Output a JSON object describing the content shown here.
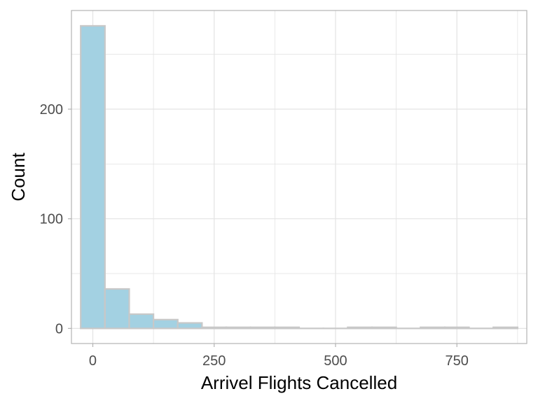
{
  "chart_data": {
    "type": "bar",
    "title": "",
    "xlabel": "Arrivel Flights Cancelled",
    "ylabel": "Count",
    "bin_width": 50,
    "bins": [
      {
        "x0": -25,
        "x1": 25,
        "count": 276
      },
      {
        "x0": 25,
        "x1": 75,
        "count": 36
      },
      {
        "x0": 75,
        "x1": 125,
        "count": 13
      },
      {
        "x0": 125,
        "x1": 175,
        "count": 8
      },
      {
        "x0": 175,
        "x1": 225,
        "count": 5
      },
      {
        "x0": 225,
        "x1": 275,
        "count": 1
      },
      {
        "x0": 275,
        "x1": 325,
        "count": 1
      },
      {
        "x0": 325,
        "x1": 375,
        "count": 1
      },
      {
        "x0": 375,
        "x1": 425,
        "count": 1
      },
      {
        "x0": 425,
        "x1": 475,
        "count": 0
      },
      {
        "x0": 475,
        "x1": 525,
        "count": 0
      },
      {
        "x0": 525,
        "x1": 575,
        "count": 1
      },
      {
        "x0": 575,
        "x1": 625,
        "count": 1
      },
      {
        "x0": 625,
        "x1": 675,
        "count": 0
      },
      {
        "x0": 675,
        "x1": 725,
        "count": 1
      },
      {
        "x0": 725,
        "x1": 775,
        "count": 1
      },
      {
        "x0": 775,
        "x1": 825,
        "count": 0
      },
      {
        "x0": 825,
        "x1": 875,
        "count": 1
      }
    ],
    "xlim": [
      -44,
      894
    ],
    "ylim": [
      -13.8,
      290
    ],
    "x_ticks": [
      0,
      250,
      500,
      750
    ],
    "y_ticks": [
      0,
      100,
      200
    ],
    "grid": true,
    "colors": {
      "bar_fill": "#a3d1e2",
      "bar_stroke": "#c8c8c8",
      "grid": "#e3e3e3",
      "panel_border": "#b3b3b3"
    }
  }
}
